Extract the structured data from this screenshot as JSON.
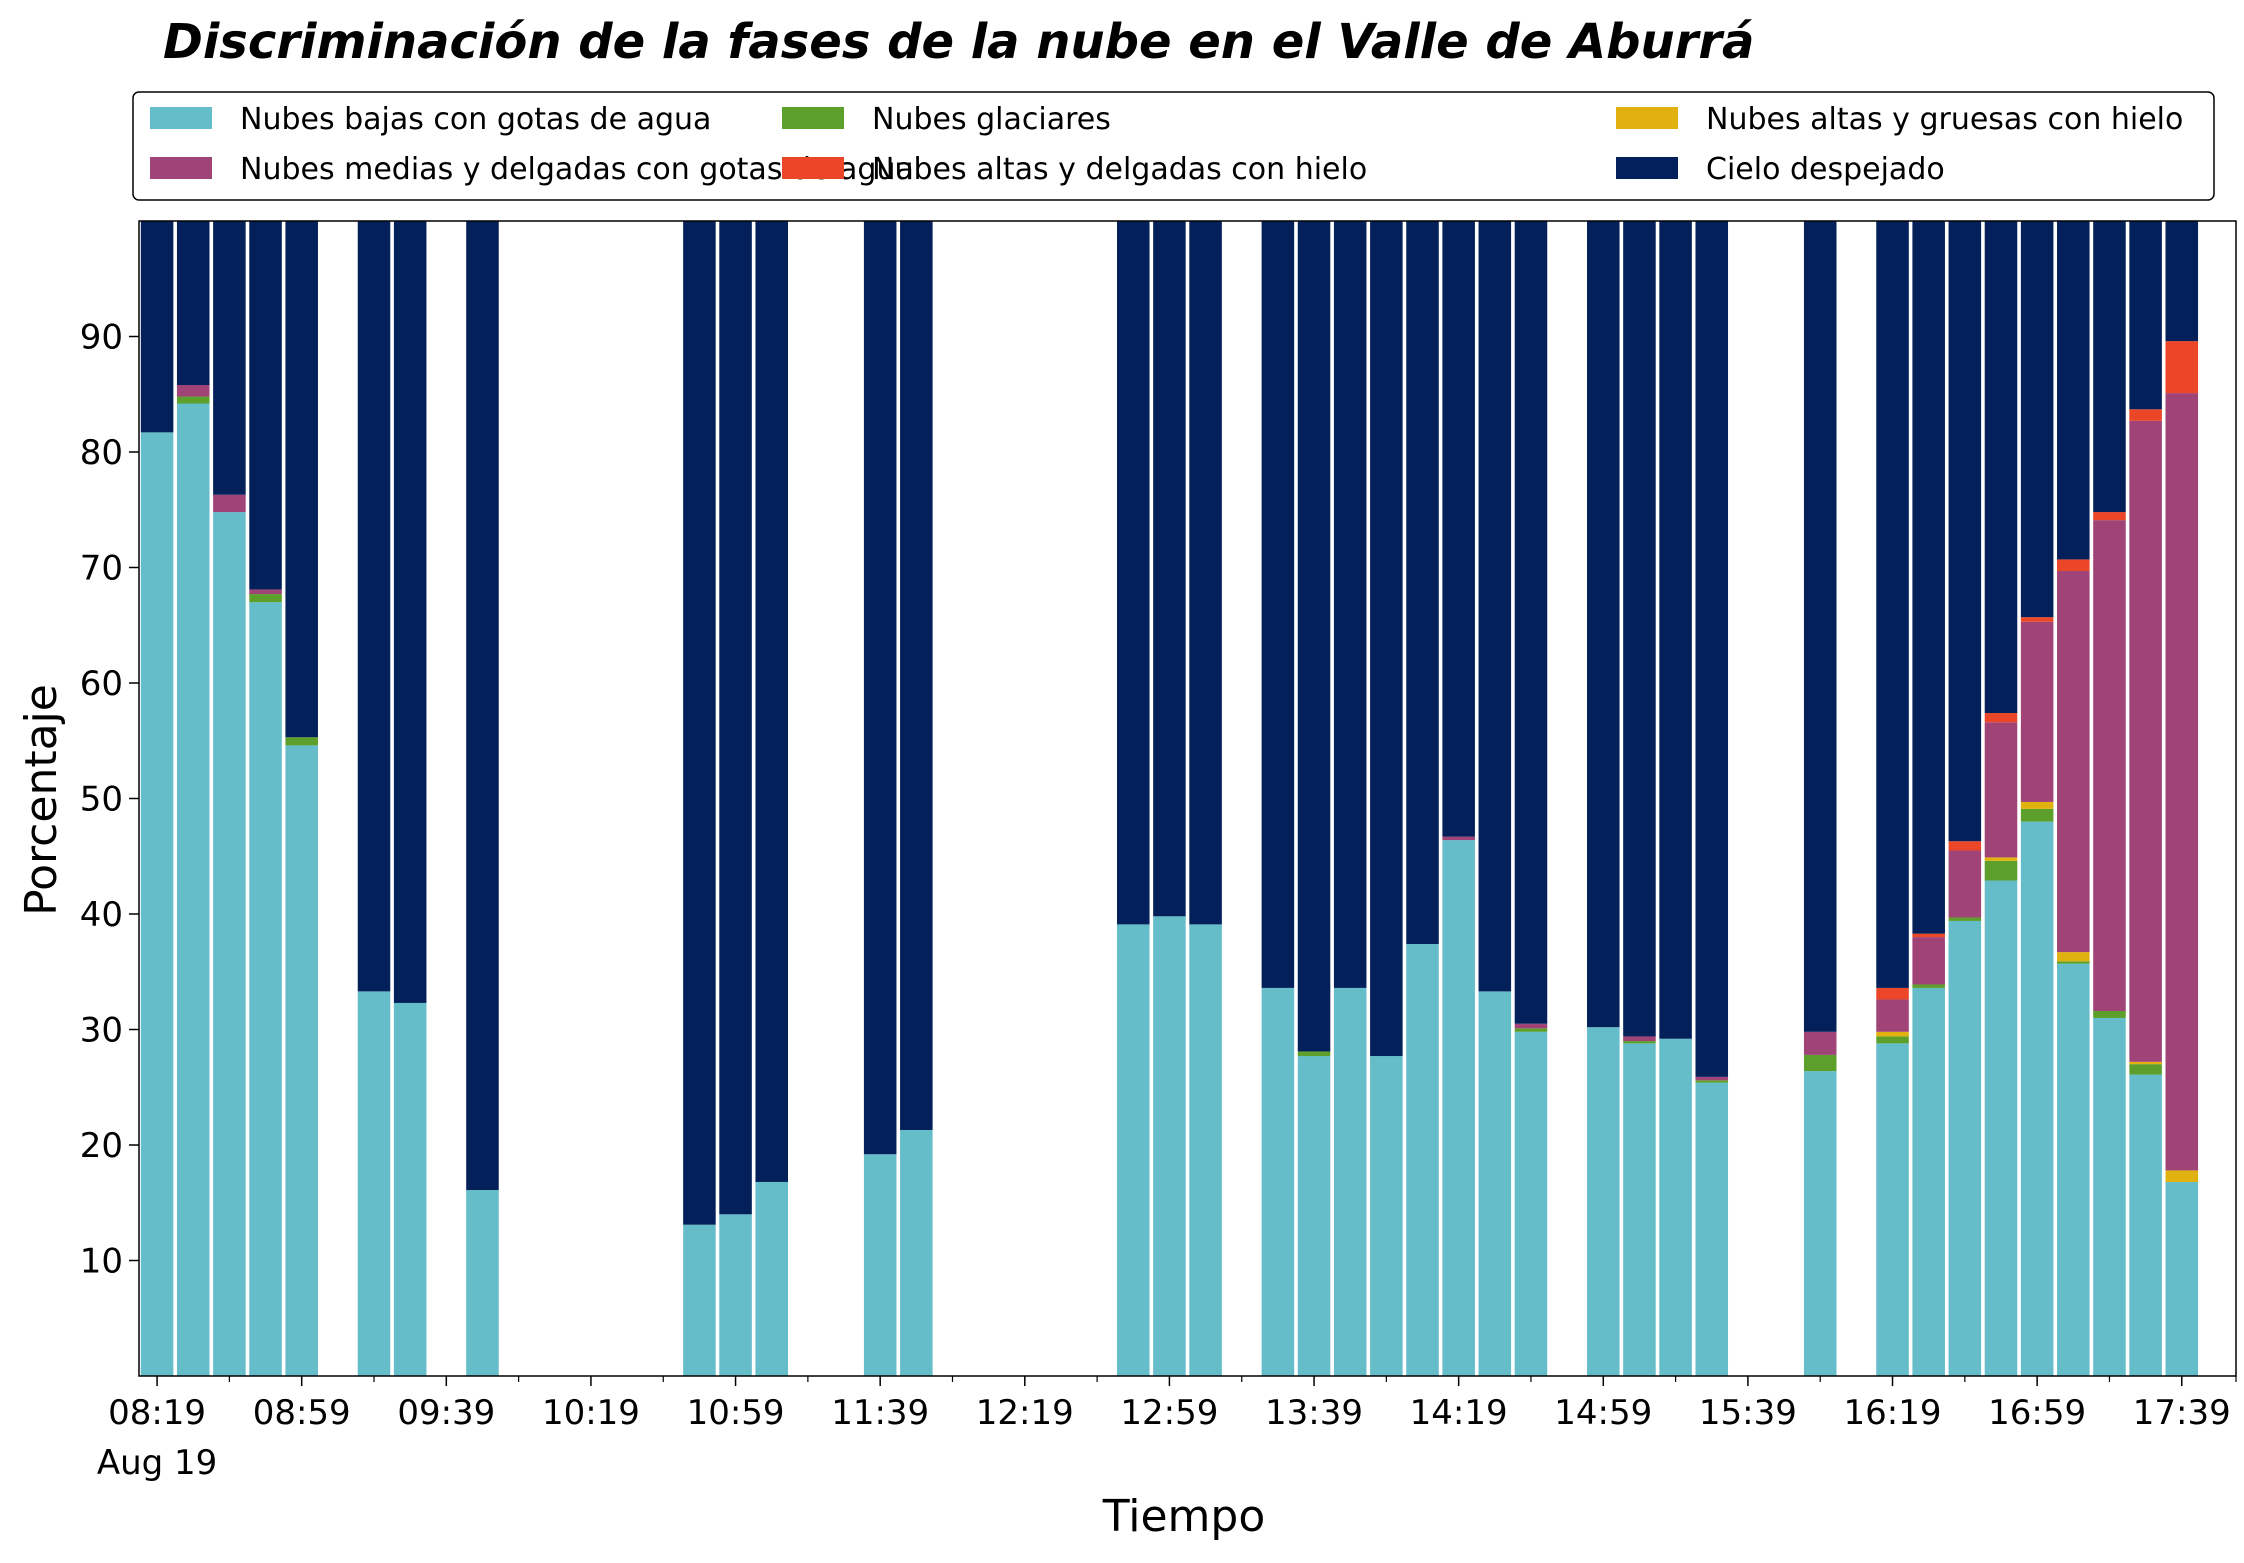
{
  "chart_data": {
    "type": "bar",
    "stacked": true,
    "title": "Discriminación de la fases de la nube en el Valle de Aburrá",
    "xlabel": "Tiempo",
    "ylabel": "Porcentaje",
    "ylim": [
      0,
      100
    ],
    "yticks": [
      10,
      20,
      30,
      40,
      50,
      60,
      70,
      80,
      90
    ],
    "x_range": [
      "08:14",
      "17:54"
    ],
    "x_tick_labels": [
      {
        "time": "08:19",
        "label": "08:19",
        "sublabel": "Aug 19"
      },
      {
        "time": "08:59",
        "label": "08:59"
      },
      {
        "time": "09:39",
        "label": "09:39"
      },
      {
        "time": "10:19",
        "label": "10:19"
      },
      {
        "time": "10:59",
        "label": "10:59"
      },
      {
        "time": "11:39",
        "label": "11:39"
      },
      {
        "time": "12:19",
        "label": "12:19"
      },
      {
        "time": "12:59",
        "label": "12:59"
      },
      {
        "time": "13:39",
        "label": "13:39"
      },
      {
        "time": "14:19",
        "label": "14:19"
      },
      {
        "time": "14:59",
        "label": "14:59"
      },
      {
        "time": "15:39",
        "label": "15:39"
      },
      {
        "time": "16:19",
        "label": "16:19"
      },
      {
        "time": "16:59",
        "label": "16:59"
      },
      {
        "time": "17:39",
        "label": "17:39"
      }
    ],
    "x_minor_ticks": [
      "08:39",
      "09:19",
      "09:59",
      "10:39",
      "11:19",
      "11:59",
      "12:39",
      "13:19",
      "13:59",
      "14:39",
      "15:19",
      "15:59",
      "16:39",
      "17:19",
      "17:54"
    ],
    "legend_placement": "top, outside the plot, 3 columns",
    "grid": false,
    "x": [
      "08:19",
      "08:29",
      "08:39",
      "08:49",
      "08:59",
      "09:19",
      "09:29",
      "09:49",
      "10:49",
      "10:59",
      "11:09",
      "11:39",
      "11:49",
      "12:49",
      "12:59",
      "13:09",
      "13:29",
      "13:39",
      "13:49",
      "13:59",
      "14:09",
      "14:19",
      "14:29",
      "14:39",
      "14:59",
      "15:09",
      "15:19",
      "15:29",
      "15:59",
      "16:19",
      "16:29",
      "16:39",
      "16:49",
      "16:59",
      "17:09",
      "17:19",
      "17:29",
      "17:39"
    ],
    "series": [
      {
        "name": "Nubes bajas con gotas de agua",
        "color": "#64bdc8",
        "values": [
          81.7,
          84.2,
          74.8,
          67.0,
          54.6,
          33.3,
          32.3,
          16.1,
          13.1,
          14.0,
          16.8,
          19.2,
          21.3,
          39.1,
          39.8,
          39.1,
          33.6,
          27.7,
          33.6,
          27.7,
          37.4,
          46.4,
          33.3,
          29.8,
          30.2,
          28.8,
          29.2,
          25.4,
          26.4,
          28.8,
          33.6,
          39.4,
          42.9,
          48.0,
          35.7,
          31.0,
          26.1,
          16.8
        ]
      },
      {
        "name": "Nubes glaciares",
        "color": "#5d9f2b",
        "values": [
          0,
          0.6,
          0,
          0.7,
          0.7,
          0,
          0,
          0,
          0,
          0,
          0,
          0,
          0,
          0,
          0,
          0,
          0,
          0.4,
          0,
          0,
          0,
          0,
          0,
          0.3,
          0,
          0.2,
          0,
          0.2,
          1.4,
          0.6,
          0.3,
          0.3,
          1.7,
          1.1,
          0.2,
          0.6,
          0.9,
          0
        ]
      },
      {
        "name": "Nubes altas y gruesas con hielo",
        "color": "#e1b10f",
        "values": [
          0,
          0,
          0,
          0,
          0,
          0,
          0,
          0,
          0,
          0,
          0,
          0,
          0,
          0,
          0,
          0,
          0,
          0,
          0,
          0,
          0,
          0,
          0,
          0,
          0,
          0,
          0,
          0,
          0,
          0.4,
          0,
          0,
          0.3,
          0.6,
          0.8,
          0,
          0.2,
          1.0
        ]
      },
      {
        "name": "Nubes medias y delgadas con gotas de agua",
        "color": "#a04377",
        "values": [
          0,
          1.0,
          1.5,
          0.4,
          0,
          0,
          0,
          0,
          0,
          0,
          0,
          0,
          0,
          0,
          0,
          0,
          0,
          0,
          0,
          0,
          0,
          0.3,
          0,
          0.4,
          0,
          0.4,
          0,
          0.3,
          2.0,
          2.8,
          4.1,
          5.8,
          11.7,
          15.6,
          33.0,
          42.5,
          55.5,
          67.3
        ]
      },
      {
        "name": "Nubes altas y delgadas con hielo",
        "color": "#ea4627",
        "values": [
          0,
          0,
          0,
          0,
          0,
          0,
          0,
          0,
          0,
          0,
          0,
          0,
          0,
          0,
          0,
          0,
          0,
          0,
          0,
          0,
          0,
          0,
          0,
          0,
          0,
          0,
          0,
          0,
          0,
          1.0,
          0.3,
          0.8,
          0.8,
          0.4,
          1.0,
          0.7,
          1.0,
          4.5
        ]
      },
      {
        "name": "Cielo despejado",
        "color": "#03205a",
        "values": [
          18.3,
          14.2,
          23.7,
          31.9,
          44.7,
          66.7,
          67.7,
          83.9,
          86.9,
          86.0,
          83.2,
          80.8,
          78.7,
          60.9,
          60.2,
          60.9,
          66.4,
          71.9,
          66.4,
          72.3,
          62.6,
          53.3,
          66.7,
          69.5,
          69.8,
          70.6,
          70.8,
          74.1,
          70.2,
          66.4,
          61.7,
          53.7,
          42.6,
          34.3,
          29.3,
          25.2,
          16.3,
          10.4
        ]
      }
    ]
  }
}
